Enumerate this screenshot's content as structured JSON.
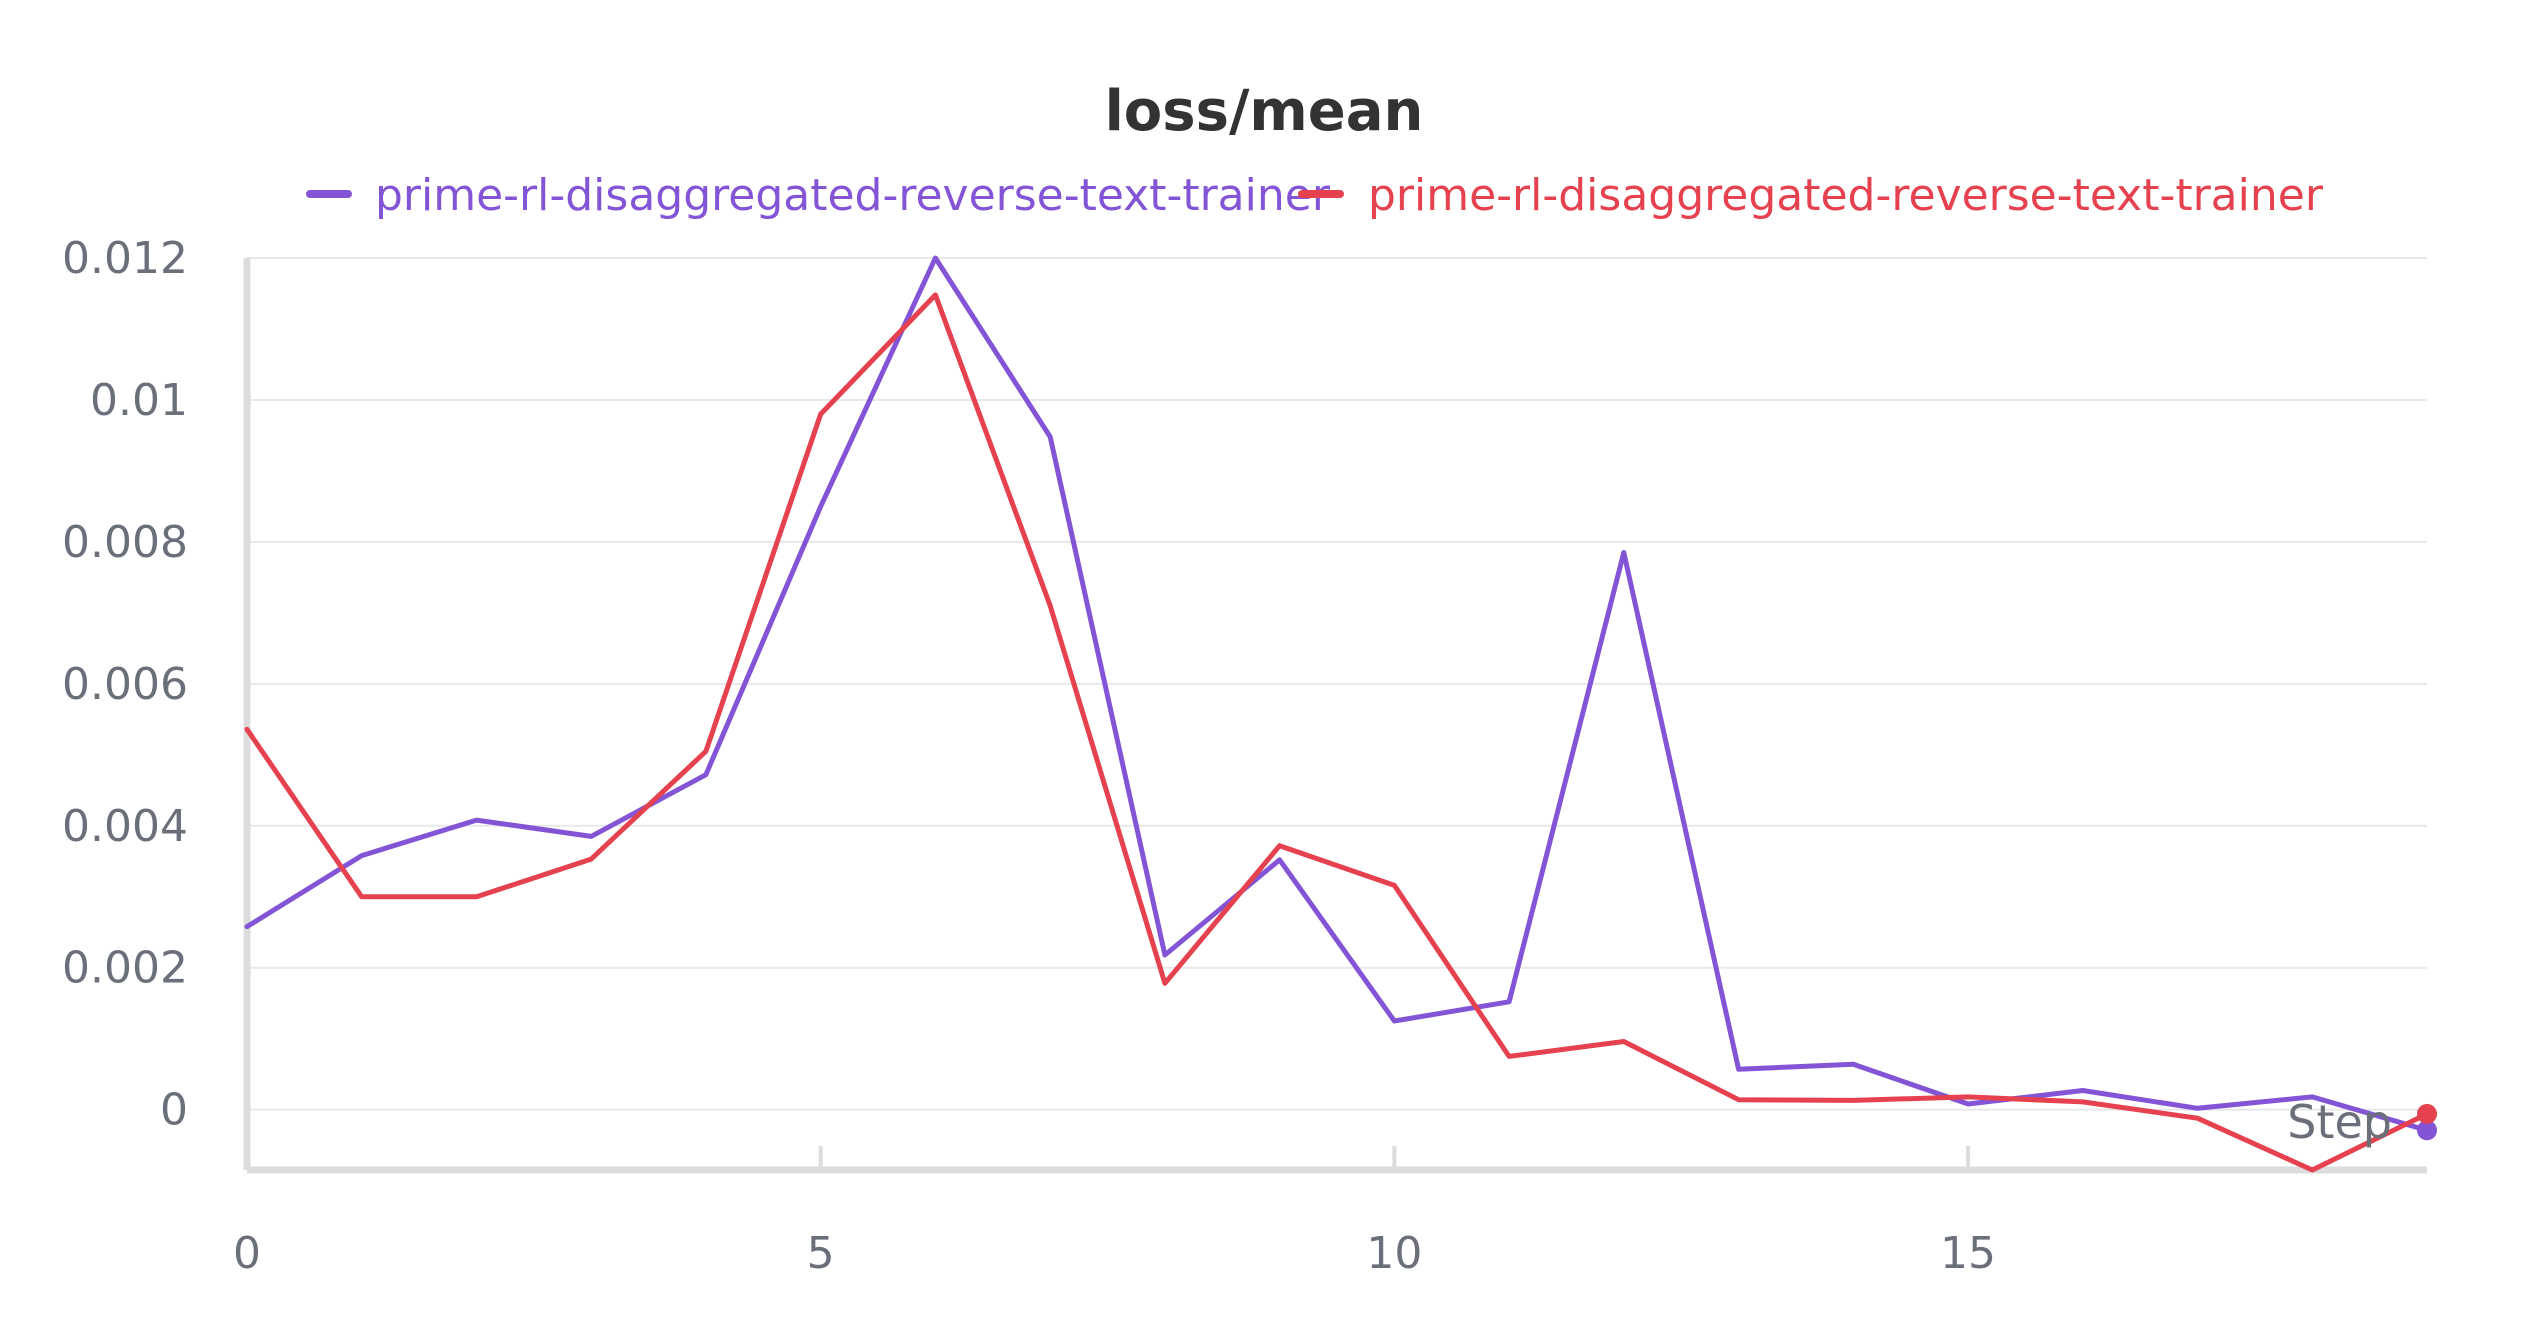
{
  "chart_data": {
    "type": "line",
    "title": "loss/mean",
    "xlabel": "Step",
    "ylabel": "",
    "xlim": [
      0,
      19
    ],
    "ylim": [
      -0.00085,
      0.012
    ],
    "xticks": [
      0,
      5,
      10,
      15
    ],
    "xtick_labels": [
      "0",
      "5",
      "10",
      "15"
    ],
    "yticks": [
      0,
      0.002,
      0.004,
      0.006,
      0.008,
      0.01,
      0.012
    ],
    "ytick_labels": [
      "0",
      "0.002",
      "0.004",
      "0.006",
      "0.008",
      "0.01",
      "0.012"
    ],
    "grid": true,
    "legend_position": "top-center",
    "x": [
      0,
      1,
      2,
      3,
      4,
      5,
      6,
      7,
      8,
      9,
      10,
      11,
      12,
      13,
      14,
      15,
      16,
      17,
      18,
      19
    ],
    "series": [
      {
        "name": "prime-rl-disaggregated-reverse-text-trainer",
        "color": "#8355d6",
        "values": [
          0.00258,
          0.00358,
          0.00408,
          0.00385,
          0.00472,
          0.0085,
          0.012,
          0.00948,
          0.00218,
          0.00352,
          0.00125,
          0.00152,
          0.00785,
          0.00057,
          0.00064,
          8e-05,
          0.00027,
          2e-05,
          0.00018,
          -0.00029
        ]
      },
      {
        "name": "prime-rl-disaggregated-reverse-text-trainer",
        "color": "#e5414e",
        "values": [
          0.00536,
          0.003,
          0.003,
          0.00353,
          0.00505,
          0.0098,
          0.01148,
          0.0071,
          0.00178,
          0.00372,
          0.00316,
          0.00075,
          0.00096,
          0.00014,
          0.00013,
          0.00018,
          0.00011,
          -0.00012,
          -0.00085,
          -6e-05
        ]
      }
    ]
  }
}
